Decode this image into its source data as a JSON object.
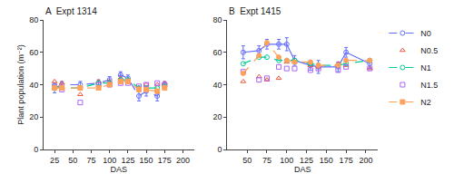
{
  "chart_data": [
    {
      "type": "line",
      "title": "A  Expt 1314",
      "xlabel": "DAS",
      "ylabel": "Plant population (m⁻²)",
      "x": [
        25,
        35,
        60,
        85,
        100,
        115,
        125,
        140,
        150,
        165,
        175
      ],
      "xlim": [
        10,
        215
      ],
      "xticks": [
        25,
        50,
        75,
        100,
        125,
        150,
        175,
        200
      ],
      "ylim": [
        0,
        80
      ],
      "yticks": [
        0,
        20,
        40,
        60,
        80
      ],
      "grid": false,
      "legend": "right",
      "series": [
        {
          "name": "N0",
          "marker": "circle-open",
          "line_style": "dashed",
          "values": [
            38,
            40,
            40,
            41,
            43,
            46,
            44,
            33,
            36,
            33,
            40
          ],
          "errors": [
            3,
            2,
            2,
            2,
            2,
            2,
            2,
            3,
            3,
            3,
            2
          ]
        },
        {
          "name": "N0.5",
          "marker": "triangle-up-open",
          "line_style": "none",
          "values": [
            42,
            41,
            34,
            42,
            42,
            44,
            43,
            38,
            40,
            40,
            41
          ]
        },
        {
          "name": "N1",
          "marker": "circle-open",
          "line_style": "dashed",
          "values": [
            39,
            38,
            38,
            41,
            41,
            43,
            43,
            38,
            38,
            38,
            39
          ]
        },
        {
          "name": "N1.5",
          "marker": "square-open",
          "line_style": "none",
          "values": [
            39,
            37,
            29,
            40,
            40,
            41,
            41,
            39,
            40,
            41,
            40
          ]
        },
        {
          "name": "N2",
          "marker": "square",
          "line_style": "dashed",
          "values": [
            38,
            38,
            38,
            38,
            40,
            42,
            42,
            37,
            37,
            36,
            38
          ]
        }
      ]
    },
    {
      "type": "line",
      "title": "B  Expt 1415",
      "xlabel": "DAS",
      "x": [
        45,
        65,
        75,
        90,
        100,
        110,
        130,
        140,
        165,
        175,
        205
      ],
      "xlim": [
        25,
        215
      ],
      "xticks": [
        50,
        75,
        100,
        125,
        150,
        175,
        200
      ],
      "ylim": [
        0,
        80
      ],
      "yticks": [
        0,
        20,
        40,
        60,
        80
      ],
      "grid": false,
      "series": [
        {
          "name": "N0",
          "marker": "circle-open",
          "line_style": "solid",
          "values": [
            60,
            61,
            65,
            65,
            65,
            55,
            52,
            51,
            51,
            60,
            53
          ],
          "errors": [
            4,
            3,
            3,
            3,
            4,
            3,
            3,
            4,
            3,
            3,
            3
          ]
        },
        {
          "name": "N0.5",
          "marker": "triangle-up-open",
          "line_style": "none",
          "values": [
            42,
            45,
            43,
            44,
            54,
            54,
            52,
            51,
            53,
            52,
            50
          ]
        },
        {
          "name": "N1",
          "marker": "circle-open",
          "line_style": "dashed",
          "values": [
            53,
            57,
            57,
            55,
            55,
            55,
            53,
            52,
            52,
            53,
            55
          ]
        },
        {
          "name": "N1.5",
          "marker": "square-open",
          "line_style": "none",
          "values": [
            48,
            43,
            44,
            51,
            50,
            50,
            49,
            50,
            49,
            51,
            50
          ]
        },
        {
          "name": "N2",
          "marker": "circle",
          "line_style": "dashed",
          "values": [
            47,
            58,
            66,
            57,
            55,
            54,
            54,
            52,
            52,
            55,
            55
          ]
        }
      ]
    }
  ]
}
